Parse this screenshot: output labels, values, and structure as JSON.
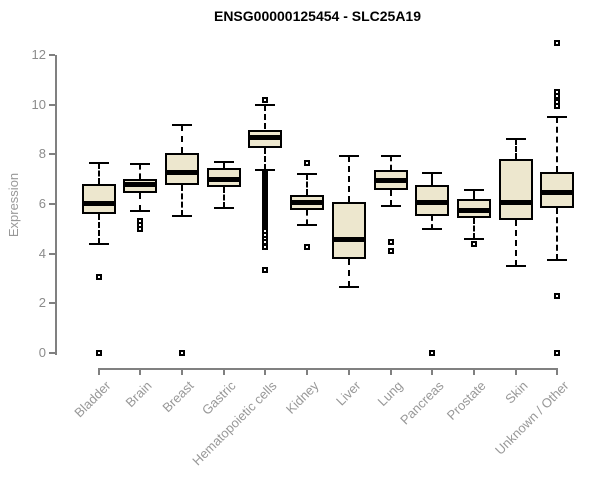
{
  "header": {
    "title": "ENSG00000125454 - SLC25A19"
  },
  "chart_data": {
    "type": "box",
    "title": "ENSG00000125454 - SLC25A19",
    "xlabel": "",
    "ylabel": "Expression",
    "ylim": [
      0,
      12
    ],
    "yticks": [
      0,
      2,
      4,
      6,
      8,
      10,
      12
    ],
    "grid": false,
    "legend": "none",
    "colors": {
      "box_fill": "#EDE7CE",
      "box_border": "#000000",
      "axis": "#808080",
      "axis_text": "#8c8c8c",
      "title_text": "#000000"
    },
    "categories": [
      "Bladder",
      "Brain",
      "Breast",
      "Gastric",
      "Hematopoietic cells",
      "Kidney",
      "Liver",
      "Lung",
      "Pancreas",
      "Prostate",
      "Skin",
      "Unknown / Other"
    ],
    "boxes": [
      {
        "category": "Bladder",
        "whisker_low": 4.4,
        "q1": 5.6,
        "median": 6.05,
        "q3": 6.8,
        "whisker_high": 7.65,
        "outliers": [
          3.05,
          0
        ]
      },
      {
        "category": "Brain",
        "whisker_low": 5.7,
        "q1": 6.45,
        "median": 6.8,
        "q3": 7.0,
        "whisker_high": 7.6,
        "outliers": [
          5.3,
          5.15,
          5.0
        ]
      },
      {
        "category": "Breast",
        "whisker_low": 5.5,
        "q1": 6.75,
        "median": 7.3,
        "q3": 8.05,
        "whisker_high": 9.2,
        "outliers": [
          0
        ]
      },
      {
        "category": "Gastric",
        "whisker_low": 5.85,
        "q1": 6.7,
        "median": 7.0,
        "q3": 7.45,
        "whisker_high": 7.7,
        "outliers": []
      },
      {
        "category": "Hematopoietic cells",
        "whisker_low": 7.35,
        "q1": 8.25,
        "median": 8.7,
        "q3": 9.0,
        "whisker_high": 10.0,
        "outliers": [
          10.2,
          7.25,
          7.2,
          7.15,
          7.1,
          7.05,
          7.0,
          6.95,
          6.9,
          6.85,
          6.8,
          6.75,
          6.7,
          6.65,
          6.6,
          6.55,
          6.5,
          6.45,
          6.4,
          6.35,
          6.3,
          6.25,
          6.2,
          6.15,
          6.1,
          6.05,
          6.0,
          5.95,
          5.9,
          5.85,
          5.8,
          5.75,
          5.7,
          5.65,
          5.6,
          5.55,
          5.5,
          5.45,
          5.4,
          5.35,
          5.3,
          5.25,
          5.2,
          5.15,
          5.1,
          5.05,
          5.0,
          4.9,
          4.75,
          4.6,
          4.45,
          4.25,
          3.35
        ]
      },
      {
        "category": "Kidney",
        "whisker_low": 5.15,
        "q1": 5.75,
        "median": 6.1,
        "q3": 6.35,
        "whisker_high": 7.2,
        "outliers": [
          7.65,
          4.25
        ]
      },
      {
        "category": "Liver",
        "whisker_low": 2.65,
        "q1": 3.8,
        "median": 4.6,
        "q3": 6.1,
        "whisker_high": 7.95,
        "outliers": []
      },
      {
        "category": "Lung",
        "whisker_low": 5.9,
        "q1": 6.55,
        "median": 6.95,
        "q3": 7.35,
        "whisker_high": 7.95,
        "outliers": [
          4.45,
          4.1
        ]
      },
      {
        "category": "Pancreas",
        "whisker_low": 5.0,
        "q1": 5.5,
        "median": 6.1,
        "q3": 6.75,
        "whisker_high": 7.25,
        "outliers": [
          0
        ]
      },
      {
        "category": "Prostate",
        "whisker_low": 4.6,
        "q1": 5.45,
        "median": 5.75,
        "q3": 6.2,
        "whisker_high": 6.55,
        "outliers": [
          4.4
        ]
      },
      {
        "category": "Skin",
        "whisker_low": 3.5,
        "q1": 5.35,
        "median": 6.1,
        "q3": 7.8,
        "whisker_high": 8.6,
        "outliers": []
      },
      {
        "category": "Unknown / Other",
        "whisker_low": 3.75,
        "q1": 5.85,
        "median": 6.5,
        "q3": 7.3,
        "whisker_high": 9.5,
        "outliers": [
          12.5,
          10.5,
          10.35,
          10.1,
          9.95,
          2.3,
          0
        ]
      }
    ]
  }
}
